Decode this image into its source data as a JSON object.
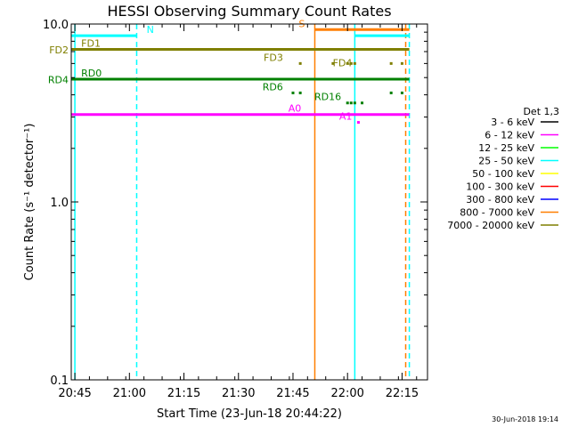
{
  "chart_data": {
    "type": "line",
    "title": "HESSI Observing Summary Count Rates",
    "xlabel": "Start Time (23-Jun-18 20:44:22)",
    "ylabel": "Count Rate (s⁻¹ detector⁻¹)",
    "x_scale": "time",
    "y_scale": "log",
    "xlim": [
      "20:44",
      "22:22"
    ],
    "ylim": [
      0.1,
      10.0
    ],
    "x_ticks": [
      "20:45",
      "21:00",
      "21:15",
      "21:30",
      "21:45",
      "22:00",
      "22:15"
    ],
    "y_ticks": [
      "0.1",
      "1.0",
      "10.0"
    ],
    "legend": {
      "title": "Det 1,3",
      "placement": "right",
      "entries": [
        {
          "label": "3 - 6 keV",
          "color": "#000000"
        },
        {
          "label": "6 - 12 keV",
          "color": "#ff00ff"
        },
        {
          "label": "12 - 25 keV",
          "color": "#00ff00"
        },
        {
          "label": "25 - 50 keV",
          "color": "#00ffff"
        },
        {
          "label": "50 - 100 keV",
          "color": "#ffff00"
        },
        {
          "label": "100 - 300 keV",
          "color": "#ff0000"
        },
        {
          "label": "300 - 800 keV",
          "color": "#0000ff"
        },
        {
          "label": "800 - 7000 keV",
          "color": "#ff7f00"
        },
        {
          "label": "7000 - 20000 keV",
          "color": "#7f7f00"
        }
      ]
    },
    "series": [
      {
        "name": "6 - 12 keV",
        "color": "#ff00ff",
        "points": [
          [
            "20:44",
            3.1
          ],
          [
            "22:17",
            3.1
          ]
        ]
      }
    ],
    "flag_lines": [
      {
        "label": "FD1",
        "color": "#7f7f00",
        "value": 7.2,
        "x_start": "20:44",
        "x_end": "22:17"
      },
      {
        "label": "RD0",
        "color": "#008000",
        "value": 4.9,
        "x_start": "20:44",
        "x_end": "22:17"
      },
      {
        "label": "N",
        "color": "#00ffff",
        "value": 8.6,
        "x_start": "20:44",
        "x_end": "21:02"
      },
      {
        "label": "N",
        "color": "#00ffff",
        "value": 8.6,
        "x_start": "22:02",
        "x_end": "22:17"
      },
      {
        "label": "S",
        "color": "#ff7f00",
        "value": 9.3,
        "x_start": "21:51",
        "x_end": "22:17"
      }
    ],
    "markers": [
      {
        "label": "FD3",
        "color": "#7f7f00",
        "value": 6.0,
        "times": [
          "21:47",
          "21:56",
          "22:00",
          "22:01",
          "22:02",
          "22:12",
          "22:15"
        ]
      },
      {
        "label": "RD6",
        "color": "#008000",
        "value": 4.1,
        "times": [
          "21:45",
          "21:47",
          "22:12",
          "22:15"
        ]
      },
      {
        "label": "RD16",
        "color": "#008000",
        "value": 3.6,
        "times": [
          "22:00",
          "22:01",
          "22:02",
          "22:04"
        ]
      },
      {
        "label": "A1",
        "color": "#ff00ff",
        "value": 2.8,
        "times": [
          "22:03"
        ]
      }
    ],
    "text_labels": [
      {
        "text": "FD2",
        "color": "#7f7f00",
        "time": "20:44",
        "value": 6.6,
        "anchor": "end"
      },
      {
        "text": "RD4",
        "color": "#008000",
        "time": "20:44",
        "value": 4.5,
        "anchor": "end"
      },
      {
        "text": "FD3",
        "color": "#7f7f00",
        "time": "21:43",
        "value": 6.0,
        "anchor": "end"
      },
      {
        "text": "FD4",
        "color": "#7f7f00",
        "time": "22:02",
        "value": 5.6,
        "anchor": "end"
      },
      {
        "text": "RD6",
        "color": "#008000",
        "time": "21:43",
        "value": 4.1,
        "anchor": "end"
      },
      {
        "text": "RD16",
        "color": "#008000",
        "time": "21:59",
        "value": 3.6,
        "anchor": "end"
      },
      {
        "text": "A0",
        "color": "#ff00ff",
        "time": "21:48",
        "value": 3.1,
        "anchor": "end"
      },
      {
        "text": "A1",
        "color": "#ff00ff",
        "time": "22:02",
        "value": 2.8,
        "anchor": "end"
      },
      {
        "text": "FD1",
        "color": "#7f7f00",
        "time": "20:46",
        "value": 7.2,
        "anchor": "start"
      },
      {
        "text": "RD0",
        "color": "#008000",
        "time": "20:46",
        "value": 4.9,
        "anchor": "start"
      },
      {
        "text": "N",
        "color": "#00ffff",
        "time": "21:04",
        "value": 8.6,
        "anchor": "start"
      },
      {
        "text": "S",
        "color": "#ff7f00",
        "time": "21:49",
        "value": 9.3,
        "anchor": "end"
      }
    ],
    "vertical_lines": [
      {
        "time": "20:45",
        "color": "#00ffff",
        "style": "solid"
      },
      {
        "time": "21:02",
        "color": "#00ffff",
        "style": "dashed"
      },
      {
        "time": "21:51",
        "color": "#ff7f00",
        "style": "solid"
      },
      {
        "time": "22:02",
        "color": "#00ffff",
        "style": "solid"
      },
      {
        "time": "22:16",
        "color": "#ff7f00",
        "style": "dashed"
      },
      {
        "time": "22:17",
        "color": "#00ffff",
        "style": "dashed"
      }
    ]
  },
  "footer_timestamp": "30-Jun-2018 19:14"
}
